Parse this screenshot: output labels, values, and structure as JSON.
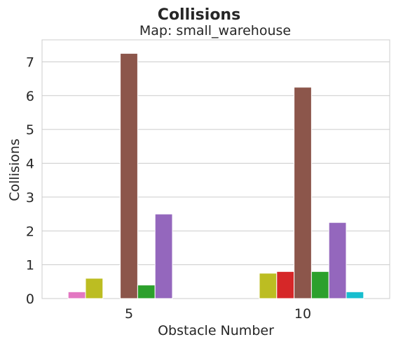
{
  "chart_data": {
    "type": "bar",
    "title": "Collisions",
    "subtitle": "Map: small_warehouse",
    "xlabel": "Obstacle Number",
    "ylabel": "Collisions",
    "categories": [
      "5",
      "10"
    ],
    "ylim": [
      0,
      7.65
    ],
    "yticks": [
      0,
      1,
      2,
      3,
      4,
      5,
      6,
      7
    ],
    "grid": true,
    "series": [
      {
        "color": "#e377c2",
        "values": [
          0.2,
          0.0
        ]
      },
      {
        "color": "#bcbd22",
        "values": [
          0.6,
          0.75
        ]
      },
      {
        "color": "#d62728",
        "values": [
          0.0,
          0.8
        ]
      },
      {
        "color": "#8c564b",
        "values": [
          7.25,
          6.25
        ]
      },
      {
        "color": "#2ca02c",
        "values": [
          0.4,
          0.8
        ]
      },
      {
        "color": "#9467bd",
        "values": [
          2.5,
          2.25
        ]
      },
      {
        "color": "#17becf",
        "values": [
          0.0,
          0.2
        ]
      }
    ]
  }
}
